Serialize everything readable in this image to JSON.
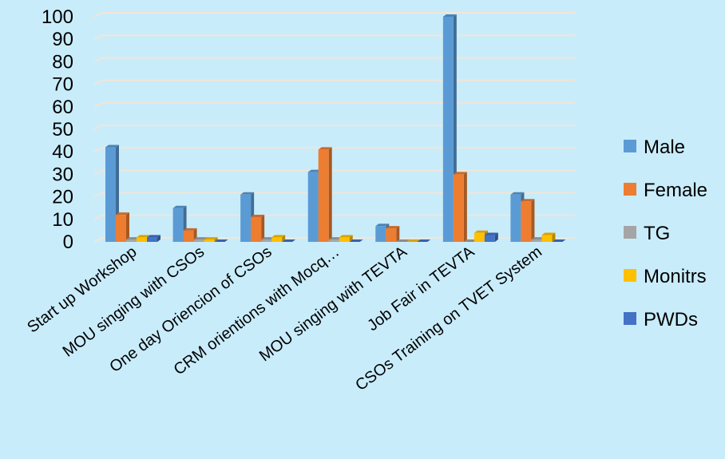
{
  "chart_data": {
    "type": "bar",
    "categories": [
      "Start up Workshop",
      "MOU singing with CSOs",
      "One day Oriencion of CSOs",
      "CRM orientions with Mocq…",
      "MOU singing with TEVTA",
      "Job Fair in TEVTA",
      "CSOs Training on TVET System"
    ],
    "series": [
      {
        "name": "Male",
        "color": "#5b9bd5",
        "values": [
          42,
          15,
          21,
          31,
          7,
          100,
          21
        ]
      },
      {
        "name": "Female",
        "color": "#ed7d31",
        "values": [
          12,
          5,
          11,
          41,
          6,
          30,
          18
        ]
      },
      {
        "name": "TG",
        "color": "#a5a5a5",
        "values": [
          1,
          1,
          1,
          1,
          0,
          0,
          1
        ]
      },
      {
        "name": "Monitrs",
        "color": "#ffc000",
        "values": [
          2,
          1,
          2,
          2,
          0,
          4,
          3
        ]
      },
      {
        "name": "PWDs",
        "color": "#4472c4",
        "values": [
          2,
          0,
          0,
          0,
          0,
          3,
          0
        ]
      }
    ],
    "yticks": [
      0,
      10,
      20,
      30,
      40,
      50,
      60,
      70,
      80,
      90,
      100
    ],
    "ylim": [
      0,
      100
    ],
    "grid": true,
    "legend_position": "right",
    "style": "3d clustered column"
  }
}
